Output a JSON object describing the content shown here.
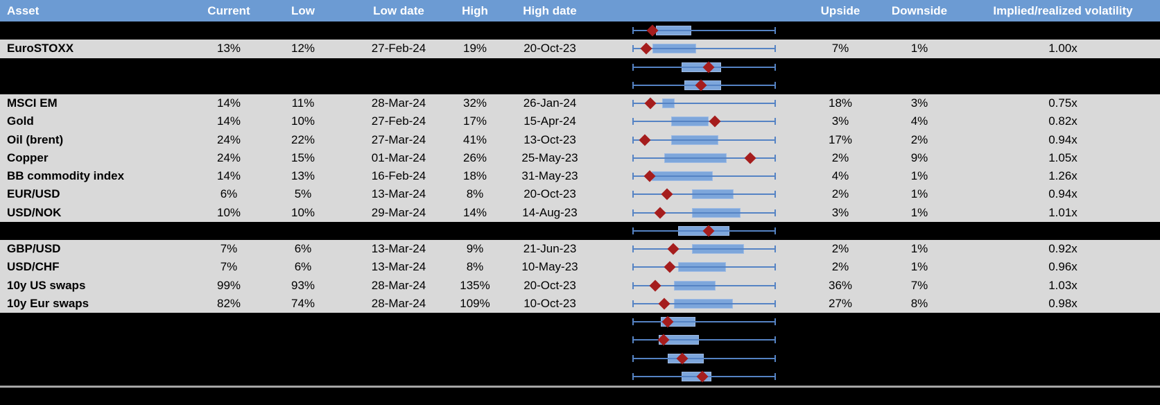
{
  "colors": {
    "header_bg": "#6C9BD3",
    "header_text": "#FFFFFF",
    "row_gray": "#D9D9D9",
    "row_black": "#000000",
    "whisker_blue": "#5583C4",
    "box_fill": "#7DA6DB",
    "box_border": "#9FBBE3",
    "marker_red": "#A51D1D",
    "divider_gray": "#A6A6A6",
    "text": "#000000"
  },
  "header": {
    "asset": "Asset",
    "current": "Current",
    "low": "Low",
    "low_date": "Low date",
    "high": "High",
    "high_date": "High date",
    "upside": "Upside",
    "downside": "Downside",
    "ivol": "Implied/realized volatility"
  },
  "chart_data": {
    "type": "table",
    "title": "",
    "columns": [
      "Asset",
      "Current",
      "Low",
      "Low date",
      "High",
      "High date",
      "Range boxplot",
      "Upside",
      "Downside",
      "Implied/realized volatility"
    ],
    "boxplot_scale": "Each row has a box-whisker sparkline; positions are percent of the whisker span (0 = left whisker end, 100 = right whisker end). 'marker' is the red diamond (current level).",
    "rows": [
      {
        "asset": null,
        "hidden": true,
        "box": {
          "box_start": 16.1,
          "box_end": 41.0,
          "marker": 13.7
        }
      },
      {
        "asset": "EuroSTOXX",
        "hidden": false,
        "current": "13%",
        "low": "12%",
        "low_date": "27-Feb-24",
        "high": "19%",
        "high_date": "20-Oct-23",
        "upside": "7%",
        "downside": "1%",
        "ivol": "1.00x",
        "box": {
          "box_start": 13.7,
          "box_end": 44.4,
          "marker": 9.3
        }
      },
      {
        "asset": null,
        "hidden": true,
        "box": {
          "box_start": 34.1,
          "box_end": 62.0,
          "marker": 53.2
        }
      },
      {
        "asset": null,
        "hidden": true,
        "box": {
          "box_start": 36.1,
          "box_end": 62.0,
          "marker": 47.8
        }
      },
      {
        "asset": "MSCI EM",
        "hidden": false,
        "current": "14%",
        "low": "11%",
        "low_date": "28-Mar-24",
        "high": "32%",
        "high_date": "26-Jan-24",
        "upside": "18%",
        "downside": "3%",
        "ivol": "0.75x",
        "box": {
          "box_start": 20.5,
          "box_end": 29.3,
          "marker": 12.2
        }
      },
      {
        "asset": "Gold",
        "hidden": false,
        "current": "14%",
        "low": "10%",
        "low_date": "27-Feb-24",
        "high": "17%",
        "high_date": "15-Apr-24",
        "upside": "3%",
        "downside": "4%",
        "ivol": "0.82x",
        "box": {
          "box_start": 26.8,
          "box_end": 53.2,
          "marker": 57.6
        }
      },
      {
        "asset": "Oil (brent)",
        "hidden": false,
        "current": "24%",
        "low": "22%",
        "low_date": "27-Mar-24",
        "high": "41%",
        "high_date": "13-Oct-23",
        "upside": "17%",
        "downside": "2%",
        "ivol": "0.94x",
        "box": {
          "box_start": 26.8,
          "box_end": 60.0,
          "marker": 8.3
        }
      },
      {
        "asset": "Copper",
        "hidden": false,
        "current": "24%",
        "low": "15%",
        "low_date": "01-Mar-24",
        "high": "26%",
        "high_date": "25-May-23",
        "upside": "2%",
        "downside": "9%",
        "ivol": "1.05x",
        "box": {
          "box_start": 22.0,
          "box_end": 65.9,
          "marker": 82.4
        }
      },
      {
        "asset": "BB commodity index",
        "hidden": false,
        "current": "14%",
        "low": "13%",
        "low_date": "16-Feb-24",
        "high": "18%",
        "high_date": "31-May-23",
        "upside": "4%",
        "downside": "1%",
        "ivol": "1.26x",
        "box": {
          "box_start": 13.2,
          "box_end": 56.1,
          "marker": 11.7
        }
      },
      {
        "asset": "EUR/USD",
        "hidden": false,
        "current": "6%",
        "low": "5%",
        "low_date": "13-Mar-24",
        "high": "8%",
        "high_date": "20-Oct-23",
        "upside": "2%",
        "downside": "1%",
        "ivol": "0.94x",
        "box": {
          "box_start": 41.5,
          "box_end": 70.7,
          "marker": 23.9
        }
      },
      {
        "asset": "USD/NOK",
        "hidden": false,
        "current": "10%",
        "low": "10%",
        "low_date": "29-Mar-24",
        "high": "14%",
        "high_date": "14-Aug-23",
        "upside": "3%",
        "downside": "1%",
        "ivol": "1.01x",
        "box": {
          "box_start": 41.5,
          "box_end": 75.6,
          "marker": 19.0
        }
      },
      {
        "asset": null,
        "hidden": true,
        "box": {
          "box_start": 31.7,
          "box_end": 67.8,
          "marker": 53.2
        }
      },
      {
        "asset": "GBP/USD",
        "hidden": false,
        "current": "7%",
        "low": "6%",
        "low_date": "13-Mar-24",
        "high": "9%",
        "high_date": "21-Jun-23",
        "upside": "2%",
        "downside": "1%",
        "ivol": "0.92x",
        "box": {
          "box_start": 41.5,
          "box_end": 78.0,
          "marker": 28.3
        }
      },
      {
        "asset": "USD/CHF",
        "hidden": false,
        "current": "7%",
        "low": "6%",
        "low_date": "13-Mar-24",
        "high": "8%",
        "high_date": "10-May-23",
        "upside": "2%",
        "downside": "1%",
        "ivol": "0.96x",
        "box": {
          "box_start": 31.7,
          "box_end": 65.4,
          "marker": 25.9
        }
      },
      {
        "asset": "10y US swaps",
        "hidden": false,
        "current": "99%",
        "low": "93%",
        "low_date": "28-Mar-24",
        "high": "135%",
        "high_date": "20-Oct-23",
        "upside": "36%",
        "downside": "7%",
        "ivol": "1.03x",
        "box": {
          "box_start": 28.8,
          "box_end": 58.0,
          "marker": 15.6
        }
      },
      {
        "asset": "10y Eur swaps",
        "hidden": false,
        "current": "82%",
        "low": "74%",
        "low_date": "28-Mar-24",
        "high": "109%",
        "high_date": "10-Oct-23",
        "upside": "27%",
        "downside": "8%",
        "ivol": "0.98x",
        "box": {
          "box_start": 28.8,
          "box_end": 70.2,
          "marker": 22.0
        }
      },
      {
        "asset": null,
        "hidden": true,
        "box": {
          "box_start": 19.5,
          "box_end": 43.9,
          "marker": 24.4
        }
      },
      {
        "asset": null,
        "hidden": true,
        "box": {
          "box_start": 18.0,
          "box_end": 46.3,
          "marker": 21.5
        }
      },
      {
        "asset": null,
        "hidden": true,
        "box": {
          "box_start": 24.4,
          "box_end": 49.8,
          "marker": 34.6
        }
      },
      {
        "asset": null,
        "hidden": true,
        "box": {
          "box_start": 34.1,
          "box_end": 55.1,
          "marker": 48.8
        }
      }
    ]
  }
}
